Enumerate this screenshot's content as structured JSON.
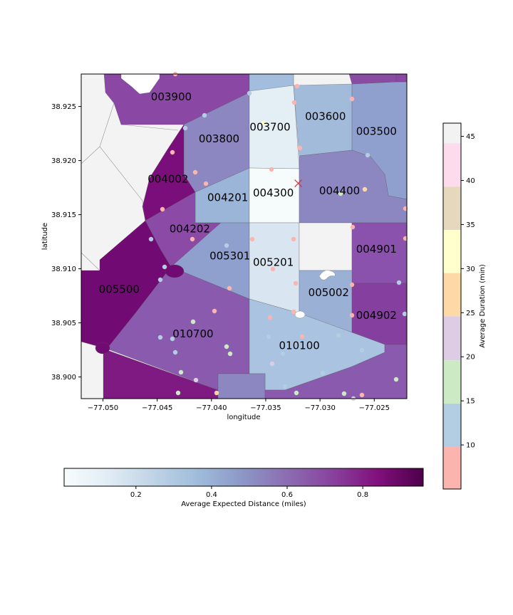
{
  "map": {
    "xlabel": "longitude",
    "ylabel": "latitude",
    "xlim": [
      -77.052,
      -77.022
    ],
    "ylim": [
      38.898,
      38.928
    ],
    "x_ticks": [
      {
        "v": -77.05,
        "label": "−77.050"
      },
      {
        "v": -77.045,
        "label": "−77.045"
      },
      {
        "v": -77.04,
        "label": "−77.040"
      },
      {
        "v": -77.035,
        "label": "−77.035"
      },
      {
        "v": -77.03,
        "label": "−77.030"
      },
      {
        "v": -77.025,
        "label": "−77.025"
      }
    ],
    "y_ticks": [
      {
        "v": 38.9,
        "label": "38.900"
      },
      {
        "v": 38.905,
        "label": "38.905"
      },
      {
        "v": 38.91,
        "label": "38.910"
      },
      {
        "v": 38.915,
        "label": "38.915"
      },
      {
        "v": 38.92,
        "label": "38.920"
      },
      {
        "v": 38.925,
        "label": "38.925"
      }
    ],
    "tract_labels": [
      {
        "text": "003900",
        "lon": -77.0437,
        "lat": 38.9259
      },
      {
        "text": "003800",
        "lon": -77.0393,
        "lat": 38.922
      },
      {
        "text": "003700",
        "lon": -77.0346,
        "lat": 38.9231
      },
      {
        "text": "003600",
        "lon": -77.0295,
        "lat": 38.9241
      },
      {
        "text": "003500",
        "lon": -77.0248,
        "lat": 38.9227
      },
      {
        "text": "004002",
        "lon": -77.044,
        "lat": 38.9183
      },
      {
        "text": "004201",
        "lon": -77.0385,
        "lat": 38.9166
      },
      {
        "text": "004300",
        "lon": -77.0343,
        "lat": 38.917
      },
      {
        "text": "004400",
        "lon": -77.0282,
        "lat": 38.9172
      },
      {
        "text": "004202",
        "lon": -77.042,
        "lat": 38.9137
      },
      {
        "text": "005301",
        "lon": -77.0383,
        "lat": 38.9112
      },
      {
        "text": "005201",
        "lon": -77.0343,
        "lat": 38.9106
      },
      {
        "text": "004901",
        "lon": -77.0248,
        "lat": 38.9118
      },
      {
        "text": "005500",
        "lon": -77.0485,
        "lat": 38.9081
      },
      {
        "text": "005002",
        "lon": -77.0292,
        "lat": 38.9078
      },
      {
        "text": "004902",
        "lon": -77.0248,
        "lat": 38.9057
      },
      {
        "text": "010700",
        "lon": -77.0417,
        "lat": 38.904
      },
      {
        "text": "010100",
        "lon": -77.0319,
        "lat": 38.9029
      }
    ],
    "marker": {
      "type": "x",
      "lon": -77.032,
      "lat": 38.9179,
      "color": "#e03030"
    },
    "colors": {
      "land_outside": "#f3f3f3",
      "water": "#ffffff"
    }
  },
  "colorbar_distance": {
    "label": "Average Expected Distance (miles)",
    "range": [
      0.01,
      0.96
    ],
    "ticks": [
      {
        "v": 0.2,
        "label": "0.2"
      },
      {
        "v": 0.4,
        "label": "0.4"
      },
      {
        "v": 0.6,
        "label": "0.6"
      },
      {
        "v": 0.8,
        "label": "0.8"
      }
    ],
    "colormap": "BuPu",
    "stops": [
      "#f7fcfd",
      "#e0ecf4",
      "#bfd3e6",
      "#9ebcda",
      "#8c96c6",
      "#8c6bb1",
      "#88419d",
      "#810f7c",
      "#4d004b"
    ]
  },
  "colorbar_duration": {
    "label": "Average Duration (min)",
    "range": [
      5,
      46.5
    ],
    "ticks": [
      {
        "v": 10,
        "label": "10"
      },
      {
        "v": 15,
        "label": "15"
      },
      {
        "v": 20,
        "label": "20"
      },
      {
        "v": 25,
        "label": "25"
      },
      {
        "v": 30,
        "label": "30"
      },
      {
        "v": 35,
        "label": "35"
      },
      {
        "v": 40,
        "label": "40"
      },
      {
        "v": 45,
        "label": "45"
      }
    ],
    "colormap": "Pastel1",
    "bins": [
      {
        "from": 5,
        "to": 9.8,
        "color": "#fbb4ae"
      },
      {
        "from": 9.8,
        "to": 14.7,
        "color": "#b3cde3"
      },
      {
        "from": 14.7,
        "to": 19.6,
        "color": "#ccebc5"
      },
      {
        "from": 19.6,
        "to": 24.6,
        "color": "#decbe4"
      },
      {
        "from": 24.6,
        "to": 29.5,
        "color": "#fed9a6"
      },
      {
        "from": 29.5,
        "to": 34.4,
        "color": "#ffffcc"
      },
      {
        "from": 34.4,
        "to": 39.3,
        "color": "#e5d8bd"
      },
      {
        "from": 39.3,
        "to": 44.2,
        "color": "#fddaec"
      },
      {
        "from": 44.2,
        "to": 46.5,
        "color": "#f2f2f2"
      }
    ]
  }
}
